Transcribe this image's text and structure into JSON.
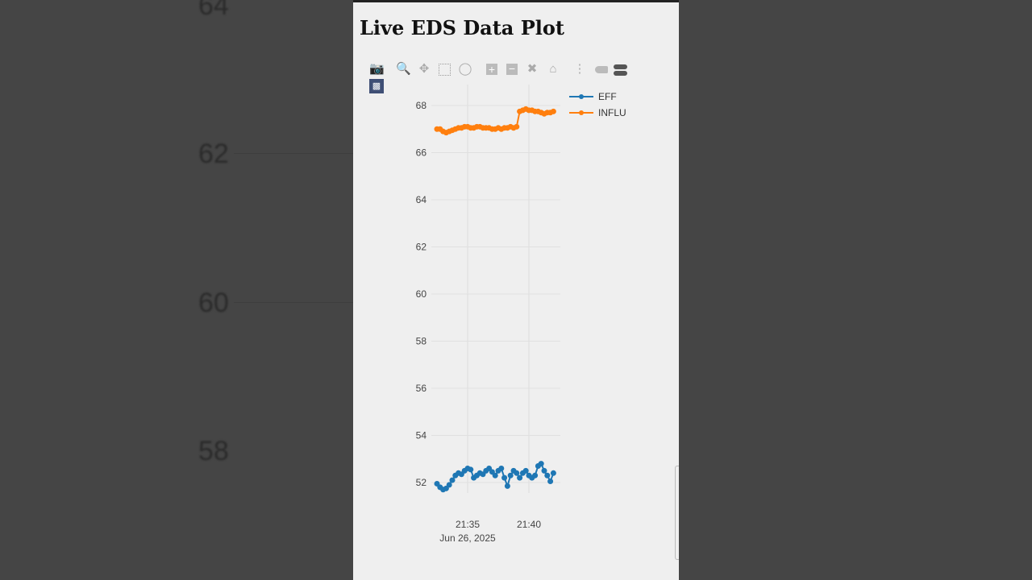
{
  "background_ticks": [
    "64",
    "62",
    "60",
    "58"
  ],
  "title": "Live EDS Data Plot",
  "toolbar": {
    "icons": [
      "camera-icon",
      "zoom-icon",
      "pan-icon",
      "box-select-icon",
      "lasso-icon",
      "zoom-in-icon",
      "zoom-out-icon",
      "autoscale-icon",
      "home-icon",
      "spike-lines-icon",
      "hover-closest-icon",
      "hover-compare-icon",
      "plotly-logo-icon"
    ]
  },
  "chart_data": {
    "type": "line",
    "title": "Live EDS Data Plot",
    "xlabel": "",
    "ylabel": "",
    "x_ticks": [
      "21:35",
      "21:40"
    ],
    "x_tick_date": "Jun 26, 2025",
    "y_ticks": [
      52,
      54,
      56,
      58,
      60,
      62,
      64,
      66,
      68
    ],
    "ylim": [
      51.0,
      68.8
    ],
    "xlim": [
      "21:31:40",
      "21:43:10"
    ],
    "grid": true,
    "legend_position": "top-right",
    "mode": "lines+markers",
    "x_start": "21:32:30",
    "x_step_seconds": 15,
    "series": [
      {
        "name": "EFF",
        "color": "#1f77b4",
        "values": [
          51.95,
          51.8,
          51.7,
          51.75,
          51.9,
          52.1,
          52.3,
          52.4,
          52.35,
          52.5,
          52.6,
          52.55,
          52.2,
          52.3,
          52.4,
          52.35,
          52.5,
          52.6,
          52.45,
          52.3,
          52.5,
          52.6,
          52.2,
          51.85,
          52.3,
          52.5,
          52.4,
          52.2,
          52.4,
          52.5,
          52.3,
          52.2,
          52.3,
          52.7,
          52.8,
          52.5,
          52.3,
          52.05,
          52.4
        ]
      },
      {
        "name": "INFLU",
        "color": "#ff7f0e",
        "values": [
          67.0,
          67.0,
          66.9,
          66.85,
          66.9,
          66.95,
          67.0,
          67.05,
          67.05,
          67.1,
          67.1,
          67.05,
          67.05,
          67.1,
          67.1,
          67.05,
          67.05,
          67.05,
          67.0,
          67.0,
          67.05,
          67.0,
          67.05,
          67.05,
          67.1,
          67.05,
          67.1,
          67.75,
          67.8,
          67.85,
          67.8,
          67.8,
          67.75,
          67.75,
          67.7,
          67.65,
          67.7,
          67.7,
          67.75
        ]
      }
    ]
  }
}
